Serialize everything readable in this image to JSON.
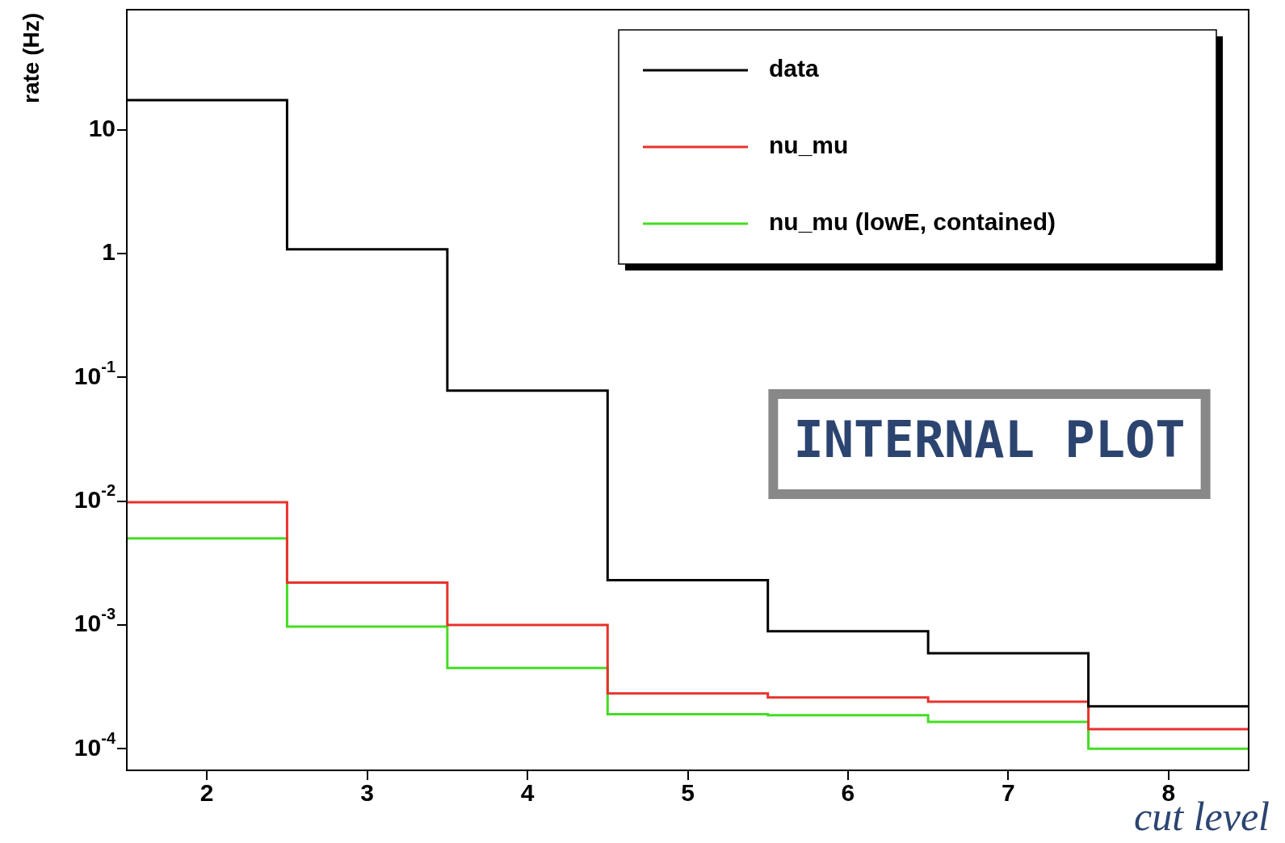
{
  "chart_data": {
    "type": "histogram",
    "xlabel": "cut level",
    "ylabel": "rate (Hz)",
    "bins": [
      1.5,
      2.5,
      3.5,
      4.5,
      5.5,
      6.5,
      7.5,
      8.5
    ],
    "series": [
      {
        "name": "data",
        "color": "#000000",
        "values": [
          17.3,
          1.08,
          0.078,
          0.0023,
          0.00089,
          0.00059,
          0.00022
        ]
      },
      {
        "name": "nu_mu",
        "color": "#e8322c",
        "values": [
          0.0098,
          0.0022,
          0.001,
          0.00028,
          0.00026,
          0.00024,
          0.000144
        ]
      },
      {
        "name": "nu_mu (lowE, contained)",
        "color": "#44dd22",
        "values": [
          0.005,
          0.00097,
          0.00045,
          0.00019,
          0.000187,
          0.000165,
          0.0001
        ]
      }
    ],
    "xlim": [
      1.5,
      8.5
    ],
    "ylim": [
      6.7e-05,
      93
    ],
    "log": true,
    "xticks": [
      2,
      3,
      4,
      5,
      6,
      7,
      8
    ],
    "yticks": [
      {
        "value": 10,
        "label": "10"
      },
      {
        "value": 1,
        "label": "1"
      },
      {
        "value": 0.1,
        "label": "10$^{-1}$"
      },
      {
        "value": 0.01,
        "label": "10$^{-2}$"
      },
      {
        "value": 0.001,
        "label": "10$^{-3}$"
      },
      {
        "value": 0.0001,
        "label": "10$^{-4}$"
      }
    ],
    "grid": false,
    "legend": "top right",
    "annotations": [
      "INTERNAL PLOT"
    ]
  }
}
